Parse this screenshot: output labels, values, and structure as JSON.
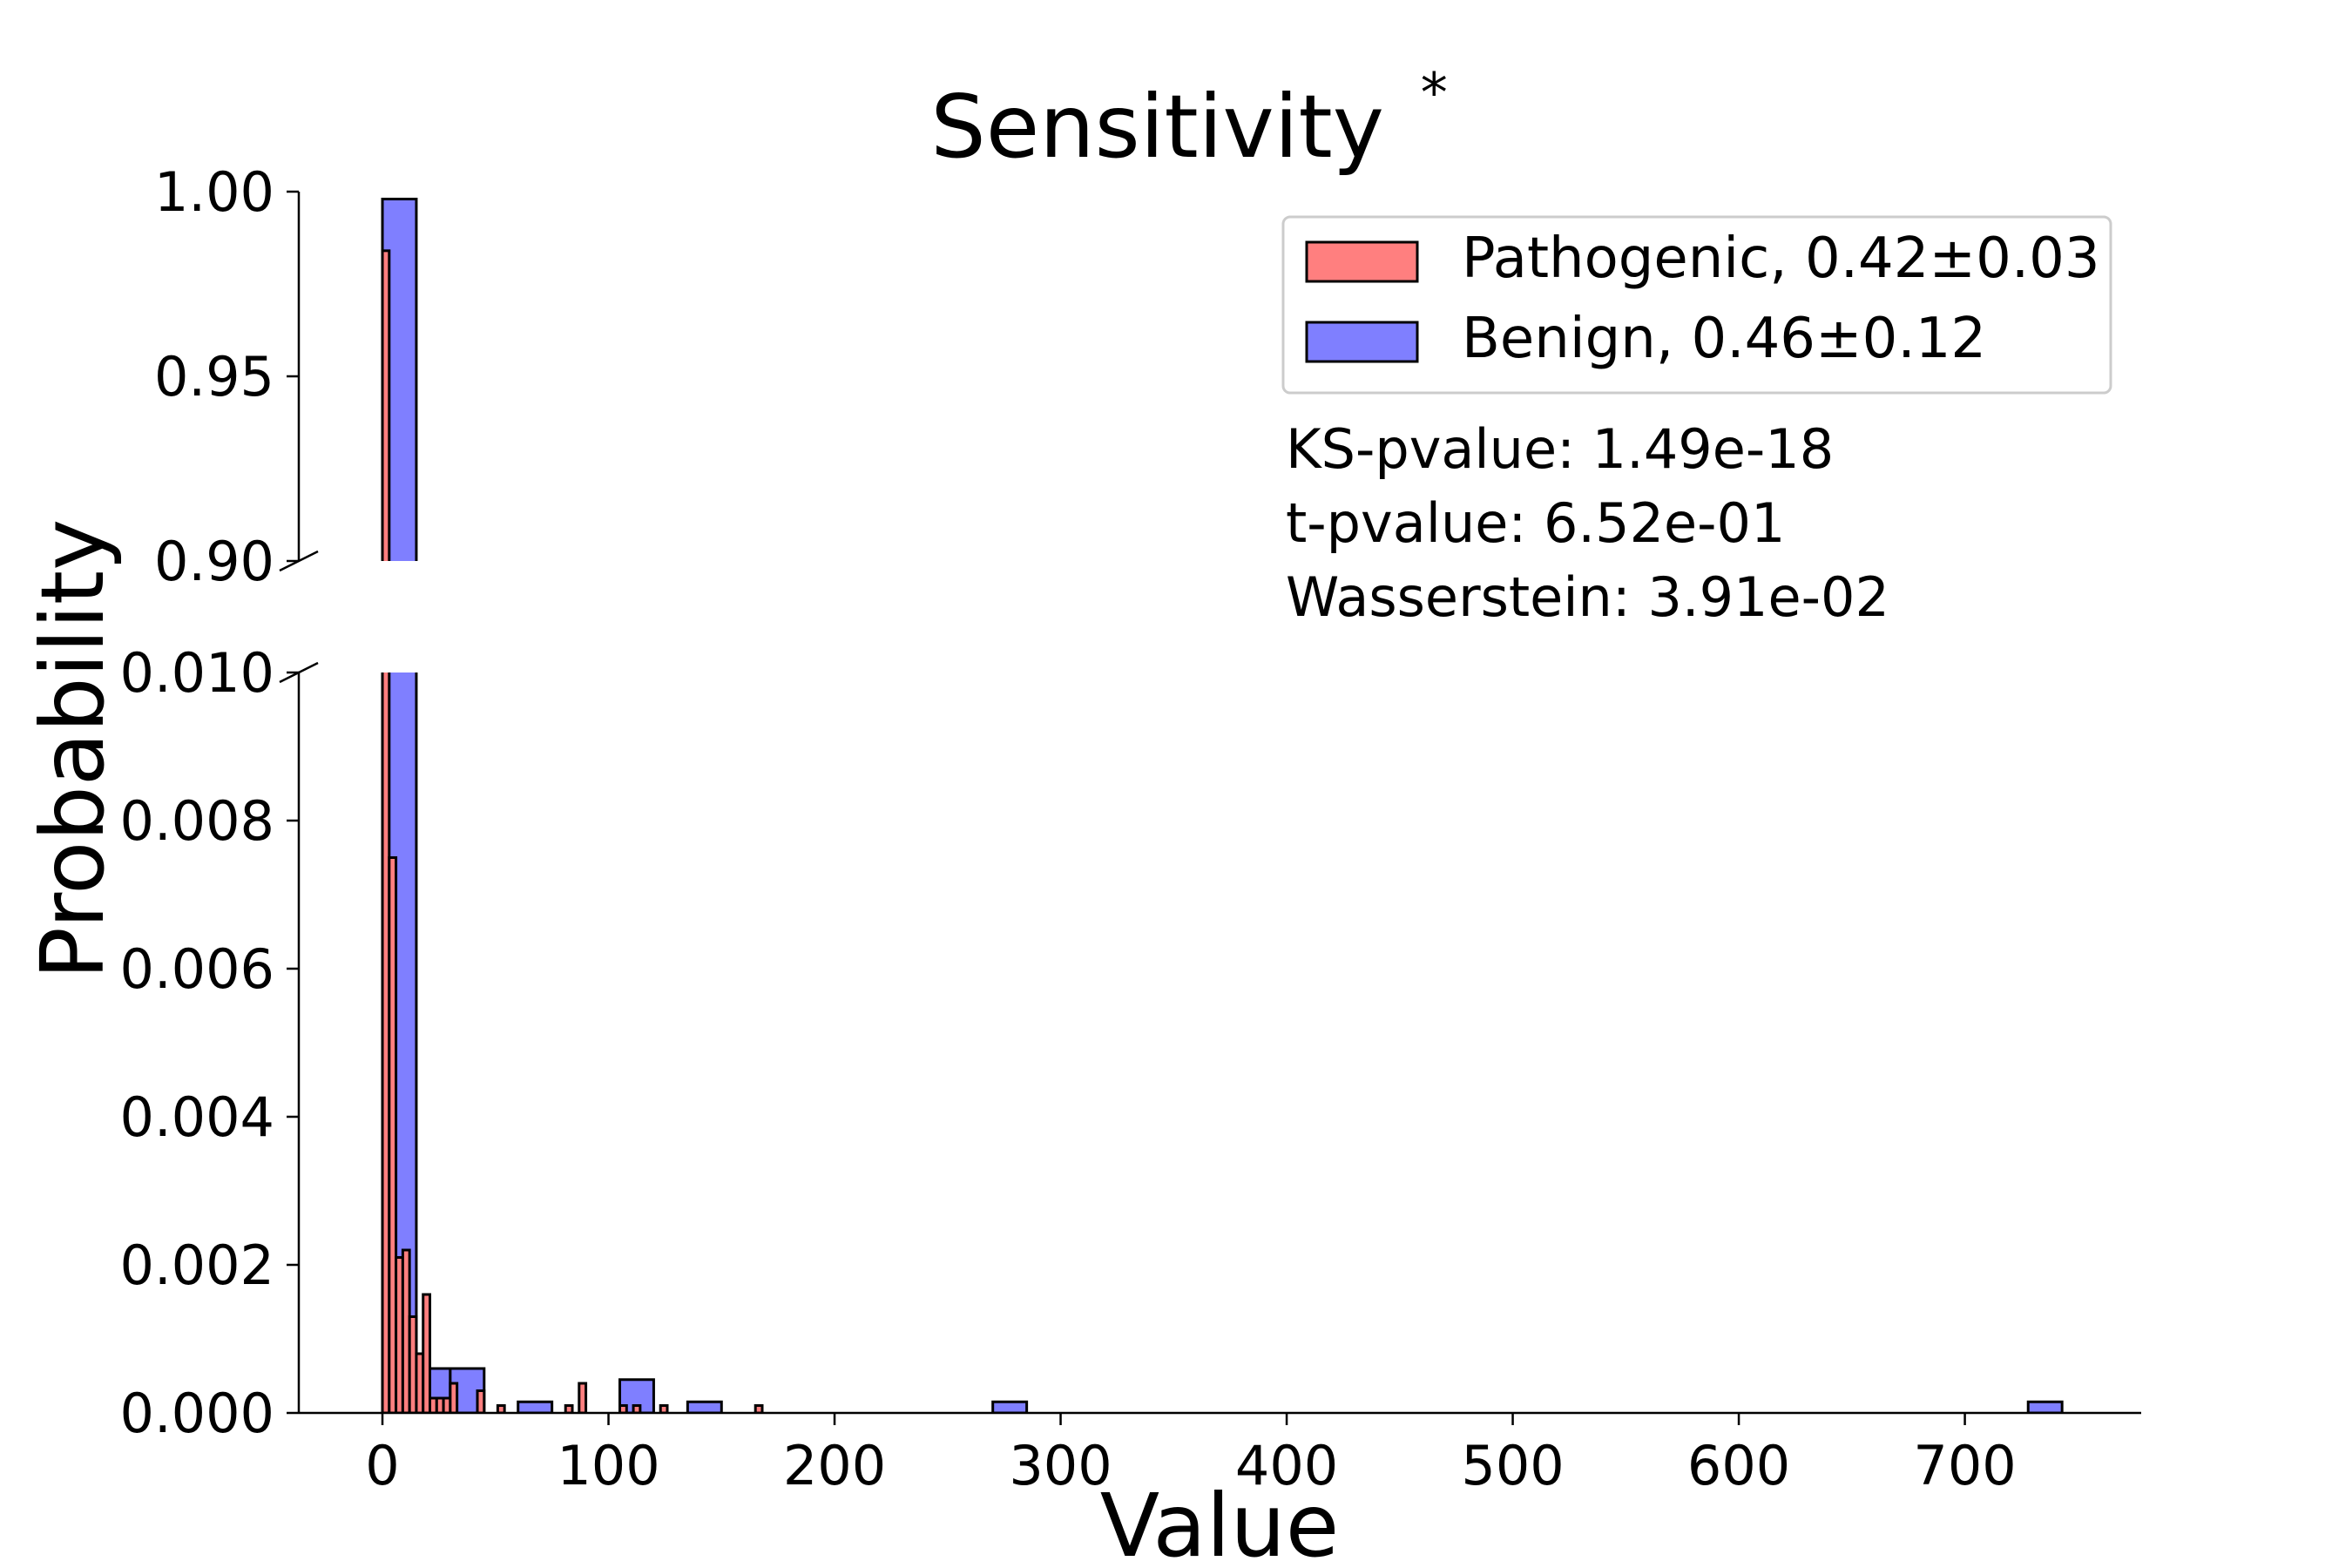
{
  "chart_data": {
    "type": "bar",
    "title": "Sensitivity",
    "title_mark": "*",
    "xlabel": "Value",
    "ylabel": "Probability",
    "xlim": [
      -37,
      778
    ],
    "x_ticks": [
      0,
      100,
      200,
      300,
      400,
      500,
      600,
      700
    ],
    "upper_panel": {
      "ylim": [
        0.9,
        1.0
      ],
      "y_ticks": [
        "0.90",
        "0.95",
        "1.00"
      ]
    },
    "lower_panel": {
      "ylim": [
        0.0,
        0.01
      ],
      "y_ticks": [
        "0.000",
        "0.002",
        "0.004",
        "0.006",
        "0.008",
        "0.010"
      ]
    },
    "broken_y_axis": true,
    "grid": false,
    "legend_position": "top-right",
    "series": [
      {
        "name": "Pathogenic, 0.42±0.03",
        "color": "#ff7f7f",
        "edge_color": "#000000",
        "bins": [
          {
            "x0": 0,
            "x1": 3,
            "p": 0.984
          },
          {
            "x0": 3,
            "x1": 6,
            "p": 0.0075
          },
          {
            "x0": 6,
            "x1": 9,
            "p": 0.0021
          },
          {
            "x0": 9,
            "x1": 12,
            "p": 0.0022
          },
          {
            "x0": 12,
            "x1": 15,
            "p": 0.0013
          },
          {
            "x0": 15,
            "x1": 18,
            "p": 0.0008
          },
          {
            "x0": 18,
            "x1": 21,
            "p": 0.0016
          },
          {
            "x0": 21,
            "x1": 24,
            "p": 0.0002
          },
          {
            "x0": 24,
            "x1": 27,
            "p": 0.0002
          },
          {
            "x0": 27,
            "x1": 30,
            "p": 0.0002
          },
          {
            "x0": 30,
            "x1": 33,
            "p": 0.0004
          },
          {
            "x0": 42,
            "x1": 45,
            "p": 0.0003
          },
          {
            "x0": 51,
            "x1": 54,
            "p": 0.0001
          },
          {
            "x0": 81,
            "x1": 84,
            "p": 0.0001
          },
          {
            "x0": 87,
            "x1": 90,
            "p": 0.0004
          },
          {
            "x0": 105,
            "x1": 108,
            "p": 0.0001
          },
          {
            "x0": 111,
            "x1": 114,
            "p": 0.0001
          },
          {
            "x0": 123,
            "x1": 126,
            "p": 0.0001
          },
          {
            "x0": 165,
            "x1": 168,
            "p": 0.0001
          }
        ]
      },
      {
        "name": "Benign, 0.46±0.12",
        "color": "#7f7fff",
        "edge_color": "#000000",
        "bins": [
          {
            "x0": 0,
            "x1": 15,
            "p": 0.998
          },
          {
            "x0": 15,
            "x1": 30,
            "p": 0.0006
          },
          {
            "x0": 30,
            "x1": 45,
            "p": 0.0006
          },
          {
            "x0": 60,
            "x1": 75,
            "p": 0.00015
          },
          {
            "x0": 105,
            "x1": 120,
            "p": 0.00045
          },
          {
            "x0": 135,
            "x1": 150,
            "p": 0.00015
          },
          {
            "x0": 270,
            "x1": 285,
            "p": 0.00015
          },
          {
            "x0": 728,
            "x1": 743,
            "p": 0.00015
          }
        ]
      }
    ],
    "annotations": [
      "KS-pvalue: 1.49e-18",
      "t-pvalue: 6.52e-01",
      "Wasserstein: 3.91e-02"
    ]
  }
}
